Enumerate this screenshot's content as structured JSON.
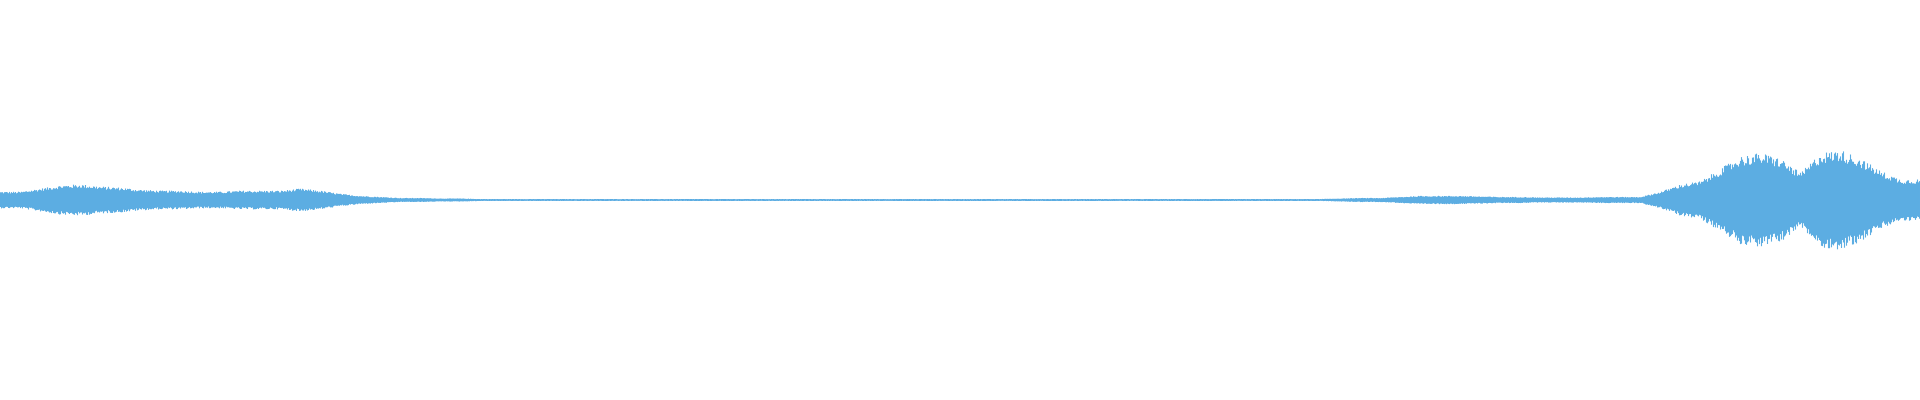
{
  "chart_data": {
    "type": "area",
    "title": "",
    "xlabel": "",
    "ylabel": "",
    "ylim": [
      -1,
      1
    ],
    "grid": false,
    "color": "#5dade2",
    "envelope_sample_count": 96,
    "envelope": [
      0.04,
      0.04,
      0.055,
      0.07,
      0.075,
      0.065,
      0.06,
      0.05,
      0.045,
      0.045,
      0.04,
      0.04,
      0.045,
      0.045,
      0.045,
      0.055,
      0.045,
      0.03,
      0.02,
      0.015,
      0.01,
      0.01,
      0.0075,
      0.0075,
      0.005,
      0.005,
      0.005,
      0.005,
      0.005,
      0.005,
      0.005,
      0.005,
      0.005,
      0.005,
      0.005,
      0.005,
      0.005,
      0.005,
      0.005,
      0.005,
      0.005,
      0.005,
      0.005,
      0.005,
      0.005,
      0.005,
      0.005,
      0.005,
      0.005,
      0.005,
      0.005,
      0.005,
      0.005,
      0.005,
      0.005,
      0.005,
      0.005,
      0.005,
      0.005,
      0.005,
      0.005,
      0.005,
      0.005,
      0.005,
      0.005,
      0.005,
      0.005,
      0.0075,
      0.01,
      0.01,
      0.015,
      0.02,
      0.02,
      0.02,
      0.0175,
      0.015,
      0.015,
      0.0125,
      0.0125,
      0.0125,
      0.015,
      0.015,
      0.015,
      0.04,
      0.075,
      0.09,
      0.15,
      0.21,
      0.225,
      0.2,
      0.13,
      0.225,
      0.24,
      0.2,
      0.14,
      0.1
    ]
  }
}
